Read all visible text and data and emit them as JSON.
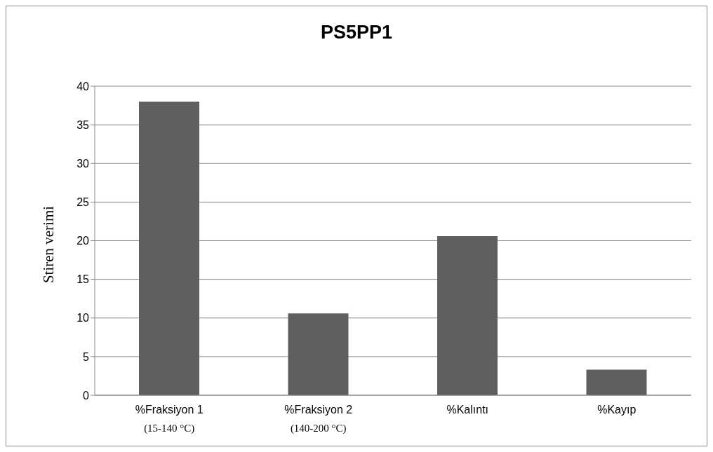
{
  "chart_data": {
    "type": "bar",
    "title": "PS5PP1",
    "ylabel": "Stiren verimi",
    "categories": [
      "%Fraksiyon 1\n(15-140 °C)",
      "%Fraksiyon 2\n(140-200 °C)",
      "%Kalıntı",
      "%Kayıp"
    ],
    "values": [
      38,
      10.6,
      20.6,
      3.3
    ],
    "color": "#5f5f5f",
    "ylim": [
      0,
      40
    ],
    "yticks": [
      0,
      5,
      10,
      15,
      20,
      25,
      30,
      35,
      40
    ],
    "grid": "y",
    "legend": false
  }
}
